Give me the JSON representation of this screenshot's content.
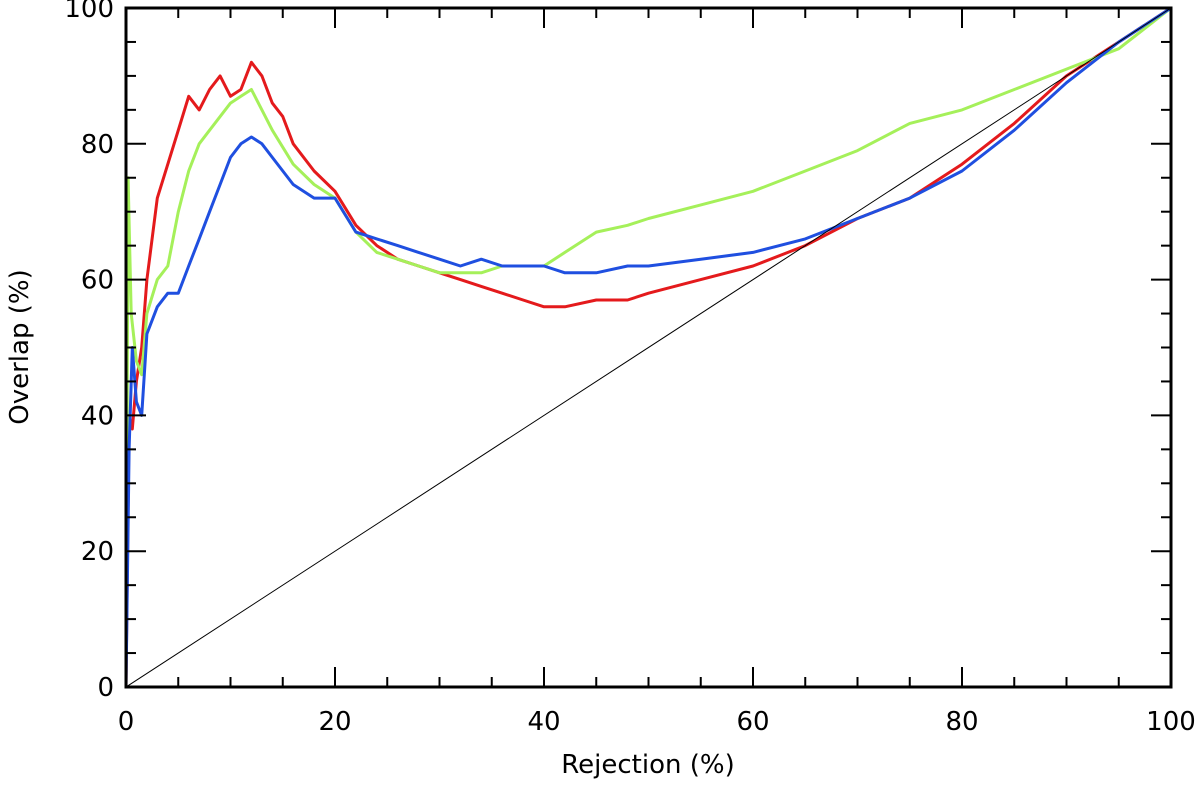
{
  "chart_data": {
    "type": "line",
    "title": "",
    "xlabel": "Rejection (%)",
    "ylabel": "Overlap (%)",
    "xlim": [
      0,
      100
    ],
    "ylim": [
      0,
      100
    ],
    "x_ticks": [
      "0",
      "20",
      "40",
      "60",
      "80",
      "100"
    ],
    "y_ticks": [
      "0",
      "20",
      "40",
      "60",
      "80",
      "100"
    ],
    "grid": false,
    "legend": "none",
    "series": [
      {
        "color": "#e41a1c",
        "x": [
          0,
          0.3,
          0.6,
          1,
          1.5,
          2,
          3,
          4,
          5,
          6,
          7,
          8,
          9,
          10,
          11,
          12,
          13,
          14,
          15,
          16,
          18,
          20,
          22,
          24,
          26,
          28,
          30,
          32,
          34,
          36,
          38,
          40,
          42,
          45,
          48,
          50,
          55,
          60,
          65,
          70,
          75,
          80,
          85,
          90,
          95,
          100
        ],
        "y": [
          0,
          40,
          38,
          45,
          50,
          60,
          72,
          77,
          82,
          87,
          85,
          88,
          90,
          87,
          88,
          92,
          90,
          86,
          84,
          80,
          76,
          73,
          68,
          65,
          63,
          62,
          61,
          60,
          59,
          58,
          57,
          56,
          56,
          57,
          57,
          58,
          60,
          62,
          65,
          69,
          72,
          77,
          83,
          90,
          95,
          100
        ]
      },
      {
        "color": "#a5f05a",
        "x": [
          0,
          0.2,
          0.5,
          1,
          1.5,
          2,
          3,
          4,
          5,
          6,
          7,
          8,
          9,
          10,
          11,
          12,
          13,
          14,
          16,
          18,
          20,
          22,
          24,
          26,
          28,
          30,
          32,
          34,
          36,
          38,
          40,
          42,
          45,
          48,
          50,
          55,
          60,
          65,
          70,
          75,
          80,
          85,
          90,
          95,
          100
        ],
        "y": [
          0,
          75,
          55,
          48,
          46,
          55,
          60,
          62,
          70,
          76,
          80,
          82,
          84,
          86,
          87,
          88,
          85,
          82,
          77,
          74,
          72,
          67,
          64,
          63,
          62,
          61,
          61,
          61,
          62,
          62,
          62,
          64,
          67,
          68,
          69,
          71,
          73,
          76,
          79,
          83,
          85,
          88,
          91,
          94,
          100
        ]
      },
      {
        "color": "#1f4fe0",
        "x": [
          0,
          0.3,
          0.6,
          1,
          1.5,
          2,
          3,
          4,
          5,
          6,
          7,
          8,
          9,
          10,
          11,
          12,
          13,
          14,
          15,
          16,
          18,
          20,
          22,
          24,
          26,
          28,
          30,
          32,
          34,
          36,
          38,
          40,
          42,
          45,
          48,
          50,
          55,
          60,
          65,
          70,
          75,
          80,
          85,
          90,
          95,
          100
        ],
        "y": [
          0,
          35,
          50,
          42,
          40,
          52,
          56,
          58,
          58,
          62,
          66,
          70,
          74,
          78,
          80,
          81,
          80,
          78,
          76,
          74,
          72,
          72,
          67,
          66,
          65,
          64,
          63,
          62,
          63,
          62,
          62,
          62,
          61,
          61,
          62,
          62,
          63,
          64,
          66,
          69,
          72,
          76,
          82,
          89,
          95,
          100
        ]
      },
      {
        "color": "#000000",
        "x": [
          0,
          100
        ],
        "y": [
          0,
          100
        ]
      }
    ]
  }
}
